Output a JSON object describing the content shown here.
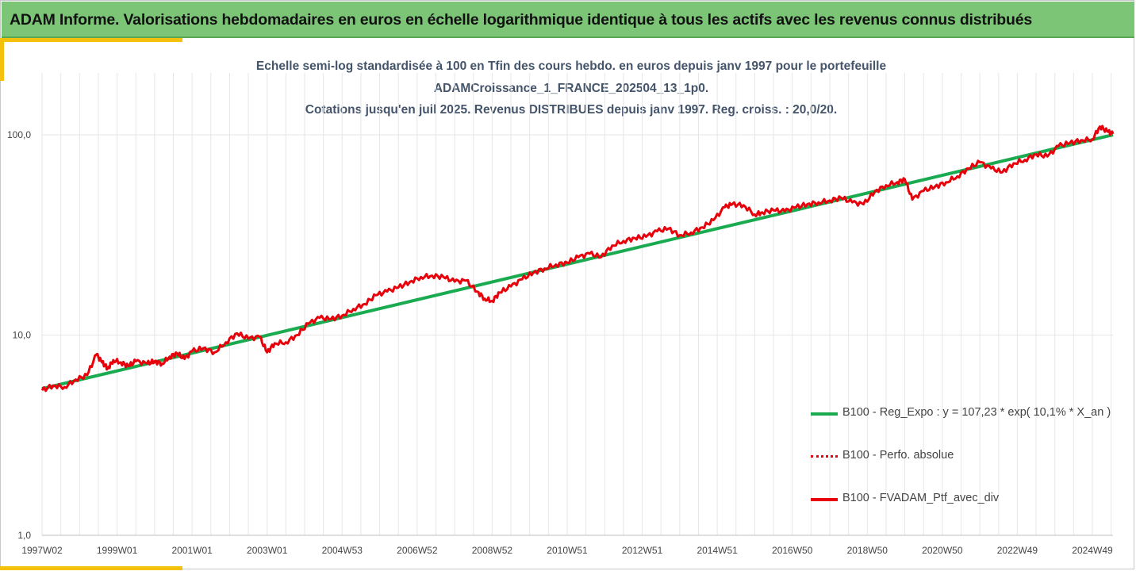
{
  "header": {
    "title": "ADAM Informe. Valorisations hebdomadaires en euros en échelle logarithmique identique à tous les actifs avec les revenus connus distribués"
  },
  "colors": {
    "header_bg": "#7cc576",
    "accent": "#f4c20d",
    "regression": "#1aaa50",
    "portfolio": "#e8000b",
    "title_text": "#44546a"
  },
  "chart_data": {
    "type": "line",
    "title_lines": [
      "Echelle semi-log standardisée à 100 en Tfin des cours hebdo.  en euros depuis janv 1997 pour le portefeuille",
      "ADAMCroissance_1_FRANCE_202504_13_1p0.",
      "Cotations  jusqu'en juil 2025. Revenus DISTRIBUES depuis janv 1997. Reg. croiss. : 20,0/20."
    ],
    "y_scale": "log",
    "ylim": [
      1,
      100
    ],
    "y_ticks": [
      "1,0",
      "10,0",
      "100,0"
    ],
    "y_tick_values": [
      1,
      10,
      100
    ],
    "x_ticks": [
      "1997W02",
      "1999W01",
      "2001W01",
      "2003W01",
      "2004W53",
      "2006W52",
      "2008W52",
      "2010W51",
      "2012W51",
      "2014W51",
      "2016W50",
      "2018W50",
      "2020W50",
      "2022W49",
      "2024W49"
    ],
    "x_tick_years": [
      1997.0,
      1999.0,
      2001.0,
      2003.0,
      2005.0,
      2007.0,
      2009.0,
      2011.0,
      2013.0,
      2015.0,
      2017.0,
      2019.0,
      2021.0,
      2023.0,
      2025.0
    ],
    "xlim": [
      1997.0,
      2025.55
    ],
    "grid": "vertical",
    "legend_position": "lower-right",
    "series": [
      {
        "name": "B100 - Reg_Expo : y = 107,23 * exp( 10,1% *  X_an )",
        "style": "solid",
        "x": [
          1997.0,
          2025.55
        ],
        "y": [
          5.4,
          100.0
        ]
      },
      {
        "name": "B100 - Perfo. absolue",
        "style": "dotted",
        "x": [],
        "y": []
      },
      {
        "name": "B100 - FVADAM_Ptf_avec_div",
        "style": "solid-thick",
        "x": [
          1997.0,
          1997.3,
          1997.6,
          1997.9,
          1998.2,
          1998.45,
          1998.6,
          1998.75,
          1998.9,
          1999.1,
          1999.3,
          1999.5,
          1999.8,
          2000.0,
          2000.2,
          2000.4,
          2000.6,
          2000.8,
          2001.0,
          2001.3,
          2001.6,
          2001.9,
          2002.2,
          2002.5,
          2002.8,
          2003.0,
          2003.2,
          2003.5,
          2003.8,
          2004.1,
          2004.4,
          2004.7,
          2005.0,
          2005.3,
          2005.6,
          2005.9,
          2006.2,
          2006.5,
          2006.8,
          2007.1,
          2007.4,
          2007.7,
          2008.0,
          2008.3,
          2008.6,
          2008.8,
          2009.0,
          2009.2,
          2009.5,
          2009.8,
          2010.1,
          2010.4,
          2010.7,
          2011.0,
          2011.3,
          2011.6,
          2011.9,
          2012.2,
          2012.5,
          2012.8,
          2013.1,
          2013.4,
          2013.7,
          2014.0,
          2014.3,
          2014.6,
          2014.9,
          2015.2,
          2015.4,
          2015.7,
          2016.0,
          2016.2,
          2016.5,
          2016.8,
          2017.1,
          2017.4,
          2017.7,
          2018.0,
          2018.3,
          2018.6,
          2018.9,
          2019.2,
          2019.5,
          2019.8,
          2020.0,
          2020.2,
          2020.5,
          2020.8,
          2021.1,
          2021.4,
          2021.7,
          2022.0,
          2022.3,
          2022.6,
          2022.9,
          2023.2,
          2023.5,
          2023.8,
          2024.1,
          2024.4,
          2024.7,
          2025.0,
          2025.2,
          2025.4,
          2025.55
        ],
        "y": [
          5.3,
          5.6,
          5.5,
          6.0,
          6.3,
          8.0,
          7.3,
          6.8,
          7.5,
          7.3,
          7.0,
          7.4,
          7.2,
          7.4,
          7.2,
          7.8,
          8.1,
          7.6,
          8.3,
          8.6,
          8.2,
          9.2,
          10.2,
          9.6,
          9.8,
          8.2,
          9.1,
          9.2,
          10.0,
          11.4,
          12.2,
          12.0,
          12.5,
          13.5,
          14.3,
          15.8,
          16.5,
          17.3,
          18.4,
          19.5,
          19.8,
          19.5,
          18.5,
          18.7,
          16.5,
          15.2,
          14.8,
          16.3,
          17.5,
          19.0,
          20.5,
          21.5,
          22.5,
          23.0,
          24.5,
          25.5,
          24.5,
          28.0,
          29.5,
          30.5,
          31.0,
          33.0,
          34.0,
          31.5,
          32.5,
          34.5,
          37.5,
          43.5,
          45.0,
          44.5,
          40.0,
          41.0,
          42.0,
          41.5,
          43.5,
          45.0,
          46.0,
          47.0,
          48.5,
          46.0,
          45.0,
          52.0,
          56.0,
          58.0,
          60.0,
          47.5,
          52.5,
          55.0,
          58.0,
          62.0,
          68.0,
          73.0,
          68.0,
          65.0,
          72.0,
          75.0,
          80.0,
          78.0,
          88.0,
          91.0,
          94.0,
          95.0,
          110.0,
          104.0,
          101.0
        ]
      }
    ]
  }
}
